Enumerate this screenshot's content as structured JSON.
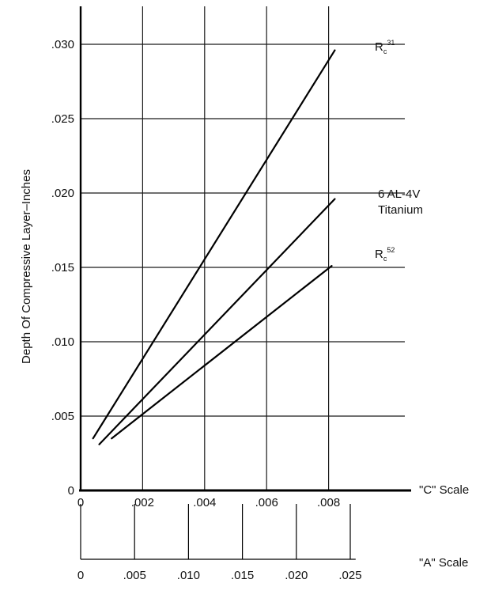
{
  "chart_data": {
    "type": "line",
    "ylabel": "Depth Of Compressive Layer–Inches",
    "ylim": [
      0,
      0.032
    ],
    "xlim": [
      0,
      0.009
    ],
    "y_ticks": [
      {
        "v": 0,
        "label": "0"
      },
      {
        "v": 0.005,
        "label": ".005"
      },
      {
        "v": 0.01,
        "label": ".010"
      },
      {
        "v": 0.015,
        "label": ".015"
      },
      {
        "v": 0.02,
        "label": ".020"
      },
      {
        "v": 0.025,
        "label": ".025"
      },
      {
        "v": 0.03,
        "label": ".030"
      }
    ],
    "x_axis_c": {
      "label": "\"C\" Scale",
      "ticks": [
        {
          "v": 0,
          "label": "0"
        },
        {
          "v": 0.002,
          "label": ".002"
        },
        {
          "v": 0.004,
          "label": ".004"
        },
        {
          "v": 0.006,
          "label": ".006"
        },
        {
          "v": 0.008,
          "label": ".008"
        }
      ]
    },
    "x_axis_a": {
      "label": "\"A\" Scale",
      "ticks": [
        {
          "v": 0,
          "label": "0"
        },
        {
          "v": 0.005,
          "label": ".005"
        },
        {
          "v": 0.01,
          "label": ".010"
        },
        {
          "v": 0.015,
          "label": ".015"
        },
        {
          "v": 0.02,
          "label": ".020"
        },
        {
          "v": 0.025,
          "label": ".025"
        }
      ]
    },
    "grid": true,
    "series": [
      {
        "name": "Rc31",
        "label_main": "R",
        "label_sub": "c",
        "label_sup": "31",
        "points": [
          [
            0.0004,
            0.0035
          ],
          [
            0.0082,
            0.0296
          ]
        ]
      },
      {
        "name": "6 AL-4V Titanium",
        "label_line1": "6 AL-4V",
        "label_line2": "Titanium",
        "points": [
          [
            0.0006,
            0.0031
          ],
          [
            0.0082,
            0.0196
          ]
        ]
      },
      {
        "name": "Rc52",
        "label_main": "R",
        "label_sub": "c",
        "label_sup": "52",
        "points": [
          [
            0.001,
            0.0035
          ],
          [
            0.0081,
            0.0151
          ]
        ]
      }
    ]
  }
}
